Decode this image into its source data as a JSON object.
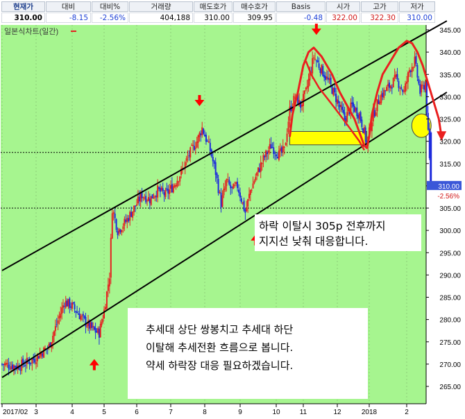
{
  "quote_table": {
    "headers": [
      "현재가",
      "대비",
      "대비%",
      "거래량",
      "매도호가",
      "매수호가",
      "Basis",
      "시가",
      "고가",
      "저가"
    ],
    "values": [
      "310.00",
      "-8.15",
      "-2.56%",
      "404,188",
      "310.00",
      "309.95",
      "-0.48",
      "322.00",
      "322.30",
      "310.00"
    ],
    "value_colors": [
      "#000000",
      "#1c3fd6",
      "#1c3fd6",
      "#000000",
      "#000000",
      "#000000",
      "#1c3fd6",
      "#d11717",
      "#d11717",
      "#1c3fd6"
    ]
  },
  "chart_data": {
    "type": "candlestick",
    "title": "일본식차트(일간)",
    "period": "daily",
    "x_tick_labels": [
      "2017/02",
      "3",
      "4",
      "5",
      "6",
      "7",
      "8",
      "9",
      "10",
      "11",
      "12",
      "2018",
      "2"
    ],
    "y_ticks": [
      265,
      270,
      275,
      280,
      285,
      290,
      295,
      300,
      305,
      310,
      315,
      320,
      325,
      330,
      335,
      340,
      345
    ],
    "ylim": [
      261,
      345
    ],
    "last_price": 310.0,
    "last_price_label": "310.00",
    "last_change_label": "-2.56%",
    "close_path": [
      [
        0,
        270
      ],
      [
        6,
        269.5
      ],
      [
        12,
        271
      ],
      [
        18,
        274
      ],
      [
        21,
        279
      ],
      [
        24,
        284
      ],
      [
        27,
        283
      ],
      [
        30,
        281
      ],
      [
        33,
        279
      ],
      [
        36,
        277.5
      ],
      [
        38,
        277
      ],
      [
        40,
        282
      ],
      [
        42,
        290
      ],
      [
        43,
        305
      ],
      [
        45,
        300
      ],
      [
        48,
        302
      ],
      [
        51,
        305
      ],
      [
        54,
        308
      ],
      [
        57,
        307
      ],
      [
        60,
        309
      ],
      [
        63,
        308
      ],
      [
        66,
        310
      ],
      [
        69,
        313
      ],
      [
        72,
        317
      ],
      [
        75,
        320
      ],
      [
        77,
        323
      ],
      [
        80,
        318
      ],
      [
        82,
        313
      ],
      [
        84,
        306
      ],
      [
        86,
        311
      ],
      [
        88,
        309
      ],
      [
        90,
        310
      ],
      [
        93,
        304
      ],
      [
        95,
        309
      ],
      [
        97,
        312
      ],
      [
        100,
        316
      ],
      [
        103,
        319
      ],
      [
        106,
        317
      ],
      [
        108,
        318
      ],
      [
        110,
        327
      ],
      [
        112,
        330
      ],
      [
        114,
        328
      ],
      [
        116,
        331
      ],
      [
        119,
        339
      ],
      [
        122,
        336
      ],
      [
        125,
        333
      ],
      [
        128,
        329
      ],
      [
        131,
        325
      ],
      [
        134,
        328
      ],
      [
        137,
        326
      ],
      [
        139,
        322
      ],
      [
        140,
        319
      ],
      [
        142,
        325
      ],
      [
        145,
        330
      ],
      [
        148,
        332
      ],
      [
        151,
        334
      ],
      [
        154,
        331
      ],
      [
        156,
        336
      ],
      [
        158,
        338
      ],
      [
        160,
        331
      ],
      [
        162,
        333
      ],
      [
        164,
        310
      ]
    ],
    "reference_lines": [
      {
        "name": "support-1",
        "y": 317.5,
        "style": "dotted"
      },
      {
        "name": "support-2",
        "y": 305.0,
        "style": "dotted"
      }
    ],
    "trend_channel": {
      "upper": [
        [
          0,
          291
        ],
        [
          170,
          347
        ]
      ],
      "lower": [
        [
          0,
          267
        ],
        [
          170,
          331
        ]
      ]
    },
    "highlight_box": {
      "x": [
        110,
        140
      ],
      "y": [
        319.2,
        322.2
      ],
      "color": "#ffff00"
    },
    "highlight_ellipse": {
      "x": 160,
      "y": 323.5,
      "color": "#ffff00"
    },
    "markers": [
      {
        "name": "down-arrow-1",
        "x": 76,
        "y": 328.5,
        "direction": "down"
      },
      {
        "name": "down-arrow-2",
        "x": 120,
        "y": 344.5,
        "direction": "down"
      },
      {
        "name": "up-arrow-1",
        "x": 36,
        "y": 270.5,
        "direction": "up"
      },
      {
        "name": "up-arrow-2",
        "x": 97,
        "y": 298.5,
        "direction": "up"
      }
    ],
    "annotations": [
      {
        "name": "annotation-support",
        "lines": [
          "하락 이탈시 305p 전후까지",
          "지지선 낮춰 대응합니다."
        ]
      },
      {
        "name": "annotation-trend",
        "lines": [
          "추세대 상단 쌍봉치고 추세대 하단",
          "이탈해 추세전환 흐름으로 봅니다.",
          "약세 하락장 대응 필요하겠습니다."
        ]
      }
    ],
    "colors": {
      "background": "#a6f58f",
      "up": "#e52020",
      "down": "#1d2bdc",
      "trend_line": "#000000",
      "pattern_curve": "#ea1f1f",
      "axis_text": "#000000"
    }
  }
}
